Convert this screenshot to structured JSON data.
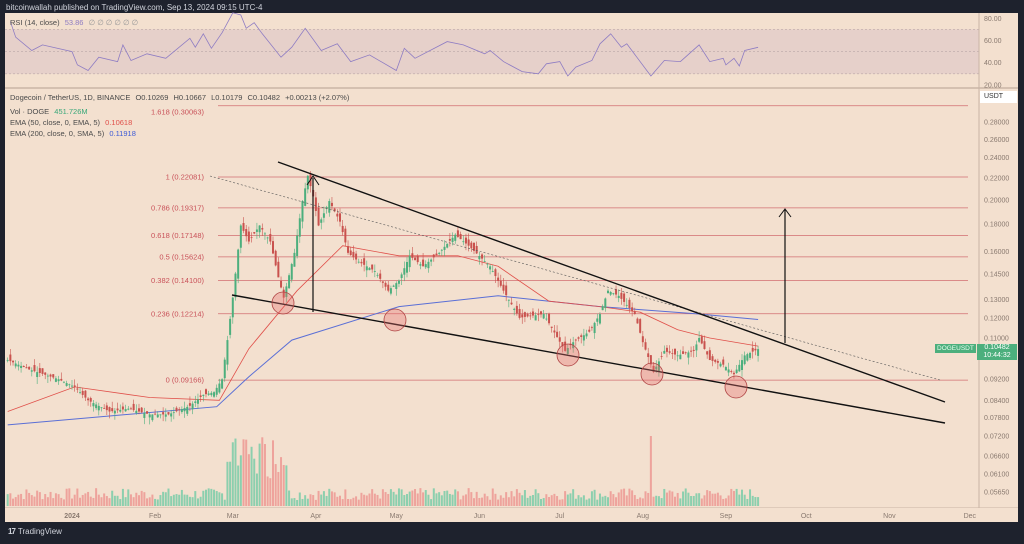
{
  "header": {
    "published": "bitcoinwallah published on TradingView.com, Sep 13, 2024 09:15 UTC-4"
  },
  "rsi_legend": {
    "label": "RSI (14, close)",
    "value": "53.86",
    "placeholders": "∅ ∅ ∅ ∅ ∅ ∅"
  },
  "legend": {
    "symbol": "Dogecoin / TetherUS, 1D, BINANCE",
    "open": "O0.10269",
    "high": "H0.10667",
    "low": "L0.10179",
    "close": "C0.10482",
    "change": "+0.00213 (+2.07%)",
    "vol_label": "Vol · DOGE",
    "vol_value": "451.726M",
    "ema50_label": "EMA (50, close, 0, EMA, 5)",
    "ema50_value": "0.10618",
    "ema200_label": "EMA (200, close, 0, SMA, 5)",
    "ema200_value": "0.11918"
  },
  "price_axis": {
    "currency": "USDT",
    "symbol_tag": "DOGEUSDT",
    "last_price": "0.10482",
    "countdown": "10:44:32"
  },
  "footer": {
    "logo_text": "TradingView"
  },
  "colors": {
    "background": "#f3e0cf",
    "up": "#4caf7d",
    "down": "#c9524e",
    "ema50": "#e0504a",
    "ema200": "#5a6fd6",
    "rsi": "#8e7cc3",
    "fib": "#c9525a"
  },
  "chart_data": {
    "type": "candlestick",
    "title": "Dogecoin / TetherUS, 1D, BINANCE",
    "scale": "log",
    "ylim": [
      0.0565,
      0.3
    ],
    "xlim": [
      "2023-12-08",
      "2024-12-10"
    ],
    "grid": false,
    "x_ticks": [
      "2024",
      "Feb",
      "Mar",
      "Apr",
      "May",
      "Jun",
      "Jul",
      "Aug",
      "Sep",
      "Oct",
      "Nov",
      "Dec"
    ],
    "y_ticks": [
      "0.28000",
      "0.26000",
      "0.24000",
      "0.22000",
      "0.20000",
      "0.18000",
      "0.16000",
      "0.14500",
      "0.13000",
      "0.12000",
      "0.11000",
      "0.09200",
      "0.08400",
      "0.07800",
      "0.07200",
      "0.06600",
      "0.06100",
      "0.05650"
    ],
    "close": [
      [
        "2023-12-08",
        0.1
      ],
      [
        "2023-12-16",
        0.096
      ],
      [
        "2023-12-27",
        0.092
      ],
      [
        "2024-01-02",
        0.089
      ],
      [
        "2024-01-07",
        0.084
      ],
      [
        "2024-01-15",
        0.08
      ],
      [
        "2024-01-22",
        0.081
      ],
      [
        "2024-01-30",
        0.079
      ],
      [
        "2024-02-06",
        0.079
      ],
      [
        "2024-02-14",
        0.082
      ],
      [
        "2024-02-19",
        0.086
      ],
      [
        "2024-02-23",
        0.087
      ],
      [
        "2024-02-26",
        0.092
      ],
      [
        "2024-02-28",
        0.109
      ],
      [
        "2024-03-01",
        0.131
      ],
      [
        "2024-03-04",
        0.179
      ],
      [
        "2024-03-07",
        0.167
      ],
      [
        "2024-03-11",
        0.179
      ],
      [
        "2024-03-15",
        0.167
      ],
      [
        "2024-03-18",
        0.143
      ],
      [
        "2024-03-20",
        0.131
      ],
      [
        "2024-03-24",
        0.159
      ],
      [
        "2024-03-27",
        0.199
      ],
      [
        "2024-03-29",
        0.222
      ],
      [
        "2024-03-31",
        0.203
      ],
      [
        "2024-04-02",
        0.179
      ],
      [
        "2024-04-06",
        0.199
      ],
      [
        "2024-04-10",
        0.182
      ],
      [
        "2024-04-13",
        0.159
      ],
      [
        "2024-04-17",
        0.153
      ],
      [
        "2024-04-23",
        0.147
      ],
      [
        "2024-04-28",
        0.135
      ],
      [
        "2024-05-02",
        0.141
      ],
      [
        "2024-05-06",
        0.157
      ],
      [
        "2024-05-11",
        0.15
      ],
      [
        "2024-05-17",
        0.159
      ],
      [
        "2024-05-23",
        0.172
      ],
      [
        "2024-05-28",
        0.164
      ],
      [
        "2024-06-05",
        0.15
      ],
      [
        "2024-06-10",
        0.135
      ],
      [
        "2024-06-16",
        0.12
      ],
      [
        "2024-06-20",
        0.121
      ],
      [
        "2024-06-25",
        0.122
      ],
      [
        "2024-07-03",
        0.104
      ],
      [
        "2024-07-06",
        0.108
      ],
      [
        "2024-07-12",
        0.113
      ],
      [
        "2024-07-16",
        0.122
      ],
      [
        "2024-07-19",
        0.135
      ],
      [
        "2024-07-23",
        0.132
      ],
      [
        "2024-07-29",
        0.122
      ],
      [
        "2024-08-01",
        0.108
      ],
      [
        "2024-08-05",
        0.095
      ],
      [
        "2024-08-09",
        0.104
      ],
      [
        "2024-08-14",
        0.102
      ],
      [
        "2024-08-20",
        0.104
      ],
      [
        "2024-08-22",
        0.11
      ],
      [
        "2024-08-26",
        0.1
      ],
      [
        "2024-08-31",
        0.098
      ],
      [
        "2024-09-04",
        0.094
      ],
      [
        "2024-09-08",
        0.102
      ],
      [
        "2024-09-13",
        0.10482
      ]
    ],
    "ema50": [
      [
        "2023-12-08",
        0.08
      ],
      [
        "2024-01-02",
        0.089
      ],
      [
        "2024-01-30",
        0.085
      ],
      [
        "2024-02-25",
        0.084
      ],
      [
        "2024-03-07",
        0.105
      ],
      [
        "2024-03-25",
        0.135
      ],
      [
        "2024-04-11",
        0.164
      ],
      [
        "2024-05-02",
        0.157
      ],
      [
        "2024-05-24",
        0.157
      ],
      [
        "2024-06-08",
        0.15
      ],
      [
        "2024-06-27",
        0.129
      ],
      [
        "2024-07-16",
        0.126
      ],
      [
        "2024-07-31",
        0.123
      ],
      [
        "2024-08-14",
        0.114
      ],
      [
        "2024-08-26",
        0.11
      ],
      [
        "2024-09-13",
        0.10618
      ]
    ],
    "ema200": [
      [
        "2023-12-08",
        0.0755
      ],
      [
        "2024-02-24",
        0.0817
      ],
      [
        "2024-03-07",
        0.093
      ],
      [
        "2024-03-23",
        0.109
      ],
      [
        "2024-05-02",
        0.126
      ],
      [
        "2024-06-08",
        0.132
      ],
      [
        "2024-07-16",
        0.126
      ],
      [
        "2024-08-22",
        0.122
      ],
      [
        "2024-09-13",
        0.11918
      ]
    ],
    "fib_levels": [
      {
        "label": "1.618 (0.30063)",
        "price": 0.30063
      },
      {
        "label": "1 (0.22081)",
        "price": 0.22081
      },
      {
        "label": "0.786 (0.19317)",
        "price": 0.19317
      },
      {
        "label": "0.618 (0.17148)",
        "price": 0.17148
      },
      {
        "label": "0.5 (0.15624)",
        "price": 0.15624
      },
      {
        "label": "0.382 (0.14100)",
        "price": 0.141
      },
      {
        "label": "0.236 (0.12214)",
        "price": 0.12214
      },
      {
        "label": "0 (0.09166)",
        "price": 0.09166
      }
    ],
    "rsi": {
      "ylim": [
        20,
        80
      ],
      "band": [
        30,
        70
      ],
      "y_ticks": [
        "80.00",
        "60.00",
        "40.00",
        "20.00"
      ],
      "values": [
        [
          "2023-12-09",
          77
        ],
        [
          "2023-12-11",
          63
        ],
        [
          "2023-12-17",
          51
        ],
        [
          "2023-12-21",
          56
        ],
        [
          "2024-01-01",
          50
        ],
        [
          "2024-01-03",
          38
        ],
        [
          "2024-01-07",
          33
        ],
        [
          "2024-01-11",
          45
        ],
        [
          "2024-01-18",
          41
        ],
        [
          "2024-01-20",
          56
        ],
        [
          "2024-01-23",
          42
        ],
        [
          "2024-01-29",
          48
        ],
        [
          "2024-02-05",
          44
        ],
        [
          "2024-02-14",
          62
        ],
        [
          "2024-02-16",
          54
        ],
        [
          "2024-02-19",
          66
        ],
        [
          "2024-02-22",
          53
        ],
        [
          "2024-02-26",
          67
        ],
        [
          "2024-03-01",
          85
        ],
        [
          "2024-03-04",
          83
        ],
        [
          "2024-03-06",
          71
        ],
        [
          "2024-03-09",
          76
        ],
        [
          "2024-03-12",
          66
        ],
        [
          "2024-03-19",
          45
        ],
        [
          "2024-03-23",
          54
        ],
        [
          "2024-03-28",
          71
        ],
        [
          "2024-04-03",
          51
        ],
        [
          "2024-04-09",
          57
        ],
        [
          "2024-04-14",
          41
        ],
        [
          "2024-04-21",
          47
        ],
        [
          "2024-05-01",
          33
        ],
        [
          "2024-05-04",
          53
        ],
        [
          "2024-05-08",
          44
        ],
        [
          "2024-05-20",
          59
        ],
        [
          "2024-05-26",
          56
        ],
        [
          "2024-06-03",
          48
        ],
        [
          "2024-06-05",
          51
        ],
        [
          "2024-06-10",
          41
        ],
        [
          "2024-06-17",
          32
        ],
        [
          "2024-06-23",
          30
        ],
        [
          "2024-06-26",
          39
        ],
        [
          "2024-07-01",
          41
        ],
        [
          "2024-07-04",
          28
        ],
        [
          "2024-07-07",
          36
        ],
        [
          "2024-07-13",
          42
        ],
        [
          "2024-07-16",
          57
        ],
        [
          "2024-07-20",
          66
        ],
        [
          "2024-07-24",
          54
        ],
        [
          "2024-07-26",
          57
        ],
        [
          "2024-08-04",
          28
        ],
        [
          "2024-08-09",
          42
        ],
        [
          "2024-08-15",
          41
        ],
        [
          "2024-08-22",
          56
        ],
        [
          "2024-08-26",
          41
        ],
        [
          "2024-08-31",
          44
        ],
        [
          "2024-09-01",
          38
        ],
        [
          "2024-09-04",
          44
        ],
        [
          "2024-09-06",
          37
        ],
        [
          "2024-09-08",
          51
        ],
        [
          "2024-09-13",
          53.86
        ]
      ]
    }
  }
}
